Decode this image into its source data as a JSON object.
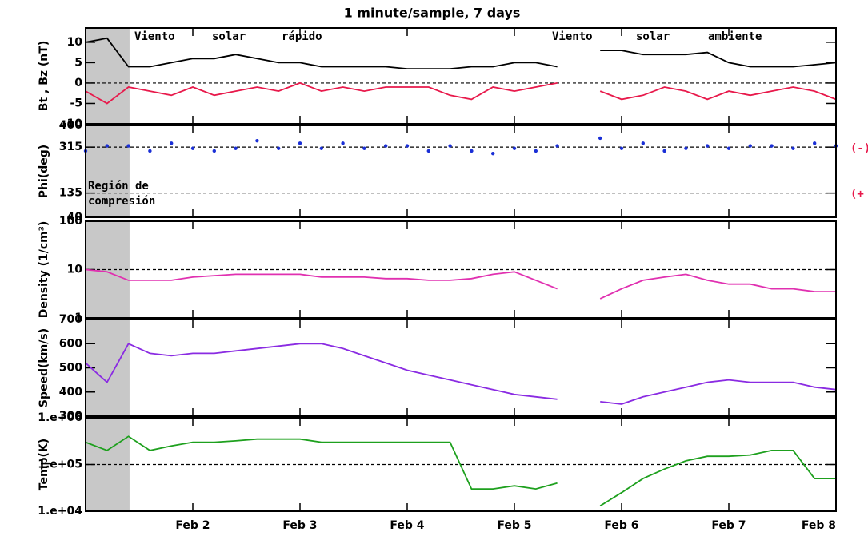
{
  "chart_data": [
    {
      "type": "line",
      "title": "1 minute/sample, 7 days",
      "ylabel": "Bt , Bz  (nT)",
      "x": [
        1.0,
        1.2,
        1.4,
        1.6,
        1.8,
        2.0,
        2.2,
        2.4,
        2.6,
        2.8,
        3.0,
        3.2,
        3.4,
        3.6,
        3.8,
        4.0,
        4.2,
        4.4,
        4.6,
        4.8,
        5.0,
        5.2,
        5.4,
        5.6,
        5.8,
        6.0,
        6.2,
        6.4,
        6.6,
        6.8,
        7.0,
        7.2,
        7.4,
        7.6,
        7.8,
        8.0
      ],
      "series": [
        {
          "name": "Bt",
          "color": "#000000",
          "values": [
            10,
            11,
            4,
            4,
            5,
            6,
            6,
            7,
            6,
            5,
            5,
            4,
            4,
            4,
            4,
            3.5,
            3.5,
            3.5,
            4,
            4,
            5,
            5,
            4,
            null,
            8,
            8,
            7,
            7,
            7,
            7.5,
            5,
            4,
            4,
            4,
            4.5,
            5
          ]
        },
        {
          "name": "Bz",
          "color": "#e8194b",
          "values": [
            -2,
            -5,
            -1,
            -2,
            -3,
            -1,
            -3,
            -2,
            -1,
            -2,
            0,
            -2,
            -1,
            -2,
            -1,
            -1,
            -1,
            -3,
            -4,
            -1,
            -2,
            -1,
            0,
            null,
            -2,
            -4,
            -3,
            -1,
            -2,
            -4,
            -2,
            -3,
            -2,
            -1,
            -2,
            -4
          ]
        }
      ],
      "ylim": [
        -10,
        13.5
      ],
      "yticks": [
        -10,
        -5,
        0,
        5,
        10
      ],
      "ylog": false,
      "ref_lines": [
        0
      ],
      "shaded_region": [
        1,
        1.41
      ],
      "annotations": [
        "Viento",
        "solar",
        "rápido",
        "Viento",
        "solar",
        "ambiente"
      ]
    },
    {
      "type": "scatter",
      "ylabel": "Phi(deg)",
      "x": [
        1.0,
        1.2,
        1.4,
        1.6,
        1.8,
        2.0,
        2.2,
        2.4,
        2.6,
        2.8,
        3.0,
        3.2,
        3.4,
        3.6,
        3.8,
        4.0,
        4.2,
        4.4,
        4.6,
        4.8,
        5.0,
        5.2,
        5.4,
        5.6,
        5.8,
        6.0,
        6.2,
        6.4,
        6.6,
        6.8,
        7.0,
        7.2,
        7.4,
        7.6,
        7.8,
        8.0
      ],
      "series": [
        {
          "name": "Phi",
          "color": "#1a2fd6",
          "values": [
            300,
            320,
            320,
            300,
            330,
            310,
            300,
            310,
            340,
            310,
            330,
            310,
            330,
            310,
            320,
            320,
            300,
            320,
            300,
            290,
            310,
            300,
            320,
            null,
            350,
            310,
            330,
            300,
            310,
            320,
            310,
            320,
            320,
            310,
            330,
            320
          ]
        }
      ],
      "ylim": [
        40,
        400
      ],
      "yticks": [
        40,
        135,
        315,
        400
      ],
      "ylog": false,
      "ref_lines": [
        315,
        135
      ],
      "annotations": [
        "Región  de",
        "compresión",
        "(-)",
        "(+"
      ]
    },
    {
      "type": "line",
      "ylabel": "Density (1/cm³)",
      "x": [
        1.0,
        1.2,
        1.4,
        1.6,
        1.8,
        2.0,
        2.2,
        2.4,
        2.6,
        2.8,
        3.0,
        3.2,
        3.4,
        3.6,
        3.8,
        4.0,
        4.2,
        4.4,
        4.6,
        4.8,
        5.0,
        5.2,
        5.4,
        5.6,
        5.8,
        6.0,
        6.2,
        6.4,
        6.6,
        6.8,
        7.0,
        7.2,
        7.4,
        7.6,
        7.8,
        8.0
      ],
      "series": [
        {
          "name": "Density",
          "color": "#e030b0",
          "values": [
            10,
            9,
            6,
            6,
            6,
            7,
            7.5,
            8,
            8,
            8,
            8,
            7,
            7,
            7,
            6.5,
            6.5,
            6,
            6,
            6.5,
            8,
            9,
            6,
            4,
            null,
            2.5,
            4,
            6,
            7,
            8,
            6,
            5,
            5,
            4,
            4,
            3.5,
            3.5
          ]
        }
      ],
      "ylim": [
        1,
        100
      ],
      "yticks": [
        1,
        10,
        100
      ],
      "ylog": true,
      "ref_lines": [
        10
      ]
    },
    {
      "type": "line",
      "ylabel": "Speed(km/s)",
      "x": [
        1.0,
        1.2,
        1.4,
        1.6,
        1.8,
        2.0,
        2.2,
        2.4,
        2.6,
        2.8,
        3.0,
        3.2,
        3.4,
        3.6,
        3.8,
        4.0,
        4.2,
        4.4,
        4.6,
        4.8,
        5.0,
        5.2,
        5.4,
        5.6,
        5.8,
        6.0,
        6.2,
        6.4,
        6.6,
        6.8,
        7.0,
        7.2,
        7.4,
        7.6,
        7.8,
        8.0
      ],
      "series": [
        {
          "name": "Speed",
          "color": "#8a2be2",
          "values": [
            520,
            440,
            600,
            560,
            550,
            560,
            560,
            570,
            580,
            590,
            600,
            600,
            580,
            550,
            520,
            490,
            470,
            450,
            430,
            410,
            390,
            380,
            370,
            null,
            360,
            350,
            380,
            400,
            420,
            440,
            450,
            440,
            440,
            440,
            420,
            410
          ]
        }
      ],
      "ylim": [
        300,
        700
      ],
      "yticks": [
        300,
        400,
        500,
        600,
        700
      ],
      "ylog": false,
      "ref_lines": []
    },
    {
      "type": "line",
      "ylabel": "Temp(K)",
      "x": [
        1.0,
        1.2,
        1.4,
        1.6,
        1.8,
        2.0,
        2.2,
        2.4,
        2.6,
        2.8,
        3.0,
        3.2,
        3.4,
        3.6,
        3.8,
        4.0,
        4.2,
        4.4,
        4.6,
        4.8,
        5.0,
        5.2,
        5.4,
        5.6,
        5.8,
        6.0,
        6.2,
        6.4,
        6.6,
        6.8,
        7.0,
        7.2,
        7.4,
        7.6,
        7.8,
        8.0
      ],
      "series": [
        {
          "name": "Temp",
          "color": "#1ea01e",
          "values": [
            300000,
            200000,
            400000,
            200000,
            250000,
            300000,
            300000,
            320000,
            350000,
            350000,
            350000,
            300000,
            300000,
            300000,
            300000,
            300000,
            300000,
            300000,
            30000,
            30000,
            35000,
            30000,
            40000,
            null,
            13000,
            25000,
            50000,
            80000,
            120000,
            150000,
            150000,
            160000,
            200000,
            200000,
            50000,
            50000
          ]
        }
      ],
      "ylim": [
        10000,
        1000000
      ],
      "yticks": [
        {
          "value": 10000,
          "label": "1.e+04"
        },
        {
          "value": 100000,
          "label": "1.e+05"
        },
        {
          "value": 1000000,
          "label": "1.e+06"
        }
      ],
      "ylog": true,
      "ref_lines": [
        100000
      ],
      "xlim": [
        1,
        8
      ],
      "xticks": [
        {
          "value": 2,
          "label": "Feb 2"
        },
        {
          "value": 3,
          "label": "Feb 3"
        },
        {
          "value": 4,
          "label": "Feb 4"
        },
        {
          "value": 5,
          "label": "Feb 5"
        },
        {
          "value": 6,
          "label": "Feb 6"
        },
        {
          "value": 7,
          "label": "Feb 7"
        },
        {
          "value": 8,
          "label": "Feb 8"
        }
      ]
    }
  ]
}
